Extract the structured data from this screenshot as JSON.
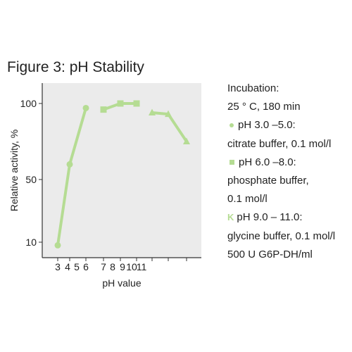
{
  "figure_title": "Figure 3: pH Stability",
  "colors": {
    "series": "#b5dc93",
    "plot_bg": "#ebebeb",
    "axis": "#333333"
  },
  "chart_data": {
    "type": "line",
    "xlabel": "pH value",
    "ylabel": "Relative activity, %",
    "x_tick_labels": [
      "3",
      "4",
      "5",
      "6",
      "7",
      "8",
      "9",
      "10",
      "11"
    ],
    "y_tick_labels": [
      "10",
      "50",
      "100"
    ],
    "xlim": [
      2.5,
      13.5
    ],
    "ylim": [
      0,
      110
    ],
    "grid": false,
    "series": [
      {
        "marker": "circle",
        "x": [
          3.0,
          4.0,
          5.0
        ],
        "y": [
          8,
          60,
          97
        ]
      },
      {
        "marker": "square",
        "x": [
          6.0,
          7.0,
          8.0
        ],
        "y": [
          96,
          100,
          100
        ]
      },
      {
        "marker": "triangle",
        "x": [
          9.0,
          10.0,
          11.0
        ],
        "y": [
          94,
          93,
          75
        ]
      }
    ]
  },
  "legend": {
    "line1": "Incubation:",
    "line2": "25 ° C, 180 min",
    "line3": "pH 3.0 –5.0:",
    "line4": "citrate buffer, 0.1 mol/l",
    "line5": "pH 6.0 –8.0:",
    "line6": "phosphate buffer,",
    "line7": "0.1 mol/l",
    "line8_symbol": "K",
    "line8": "pH 9.0 – 11.0:",
    "line9": "glycine buffer, 0.1 mol/l",
    "line10": "500 U G6P-DH/ml"
  }
}
